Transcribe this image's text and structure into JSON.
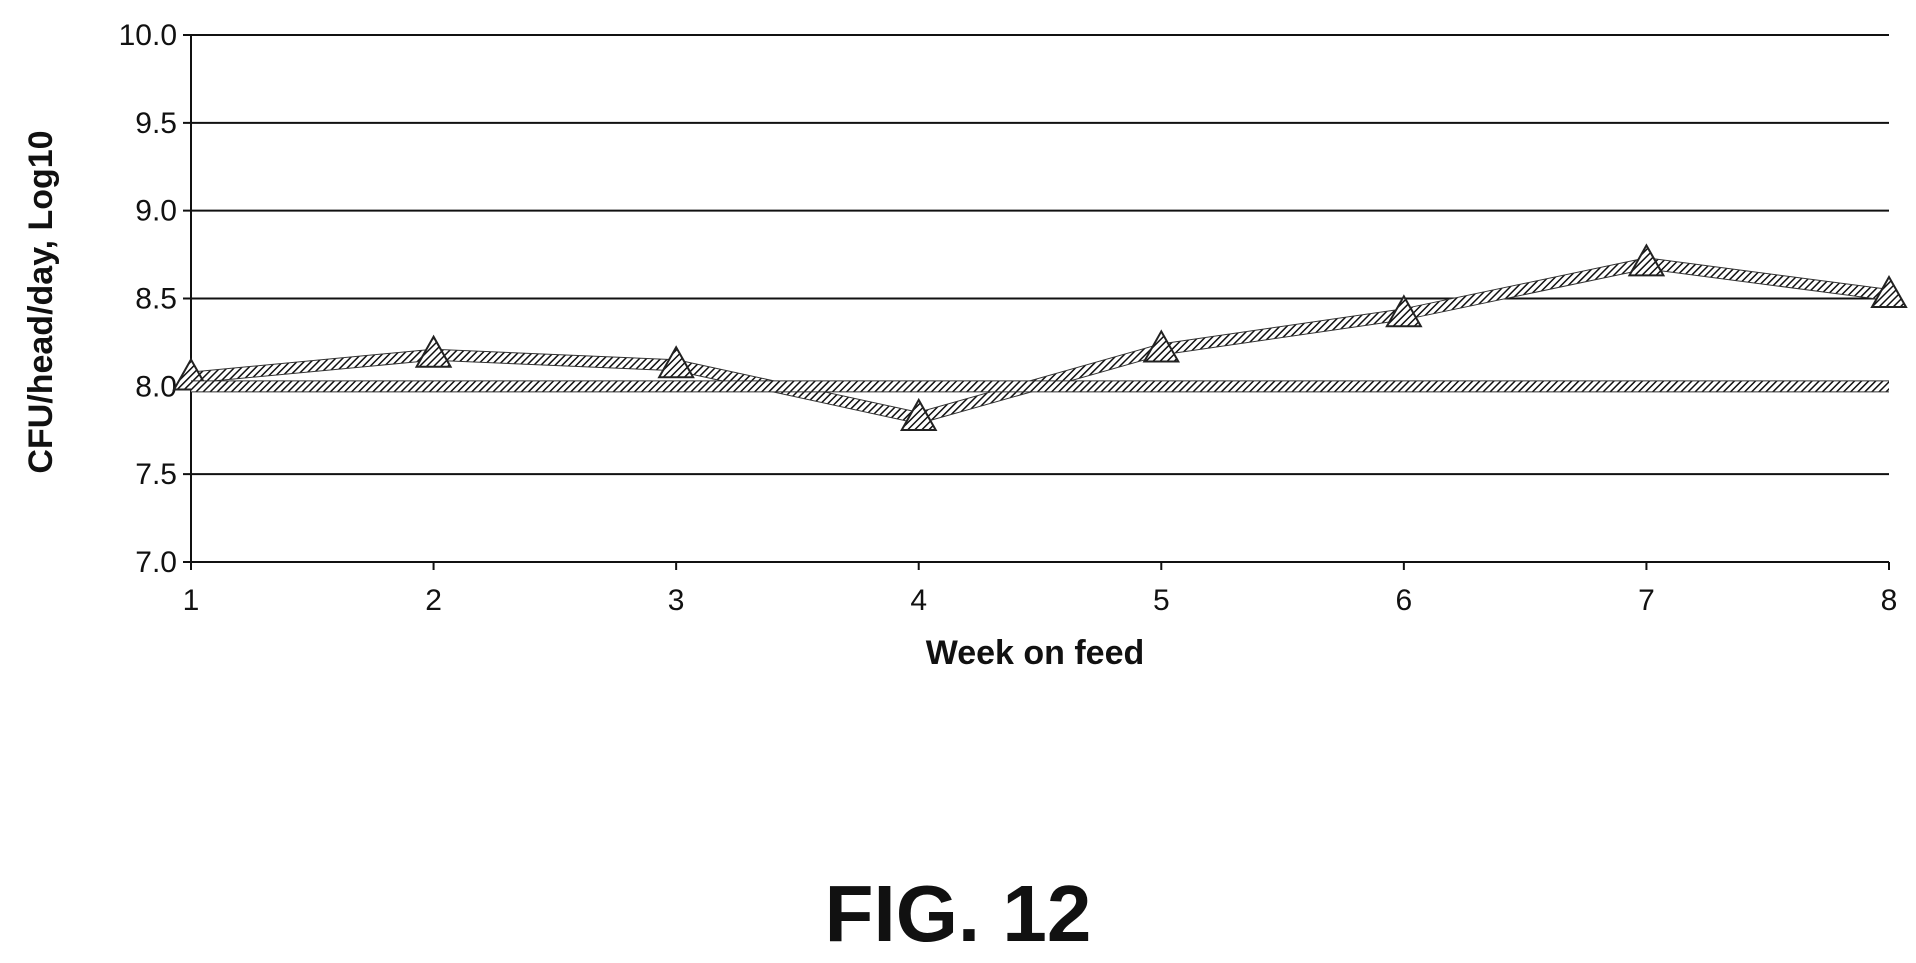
{
  "figure_label": "FIG. 12",
  "chart_data": {
    "type": "line",
    "xlabel": "Week on feed",
    "ylabel": "CFU/head/day, Log10",
    "x": [
      1,
      2,
      3,
      4,
      5,
      6,
      7,
      8
    ],
    "x_tick_labels": [
      "1",
      "2",
      "3",
      "4",
      "5",
      "6",
      "7",
      "8"
    ],
    "ylim": [
      7.0,
      10.0
    ],
    "y_tick_labels": [
      "10.0",
      "9.5",
      "9.0",
      "8.5",
      "8.0",
      "7.5",
      "7.0"
    ],
    "grid": "horizontal",
    "legend": "none",
    "series": [
      {
        "marker": "triangle",
        "values": [
          8.05,
          8.18,
          8.12,
          7.82,
          8.21,
          8.41,
          8.7,
          8.52
        ]
      },
      {
        "marker": "none",
        "values": [
          8.0,
          8.0,
          8.0,
          8.0,
          8.0,
          8.0,
          8.0,
          8.0
        ]
      }
    ],
    "colors": {
      "line": "#555555",
      "grid": "#111111",
      "axis": "#111111"
    }
  }
}
